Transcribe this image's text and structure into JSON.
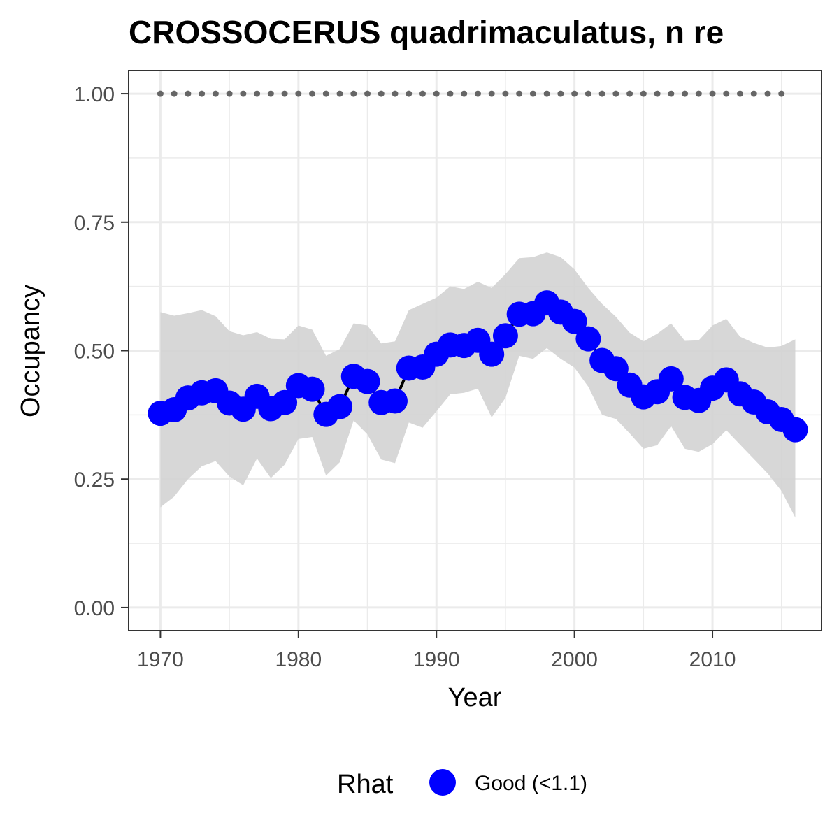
{
  "chart_data": {
    "type": "line",
    "title": "CROSSOCERUS quadrimaculatus, n re",
    "xlabel": "Year",
    "ylabel": "Occupancy",
    "xlim": [
      1967.7,
      2017.9
    ],
    "ylim": [
      -0.045,
      1.045
    ],
    "x_ticks": [
      1970,
      1980,
      1990,
      2000,
      2010
    ],
    "x_tick_labels": [
      "1970",
      "1980",
      "1990",
      "2000",
      "2010"
    ],
    "y_ticks": [
      0,
      0.25,
      0.5,
      0.75,
      1
    ],
    "y_tick_labels": [
      "0.00",
      "0.25",
      "0.50",
      "0.75",
      "1.00"
    ],
    "grid": true,
    "legend": {
      "title": "Rhat",
      "placement": "bottom",
      "entries": [
        {
          "label": "Good (<1.1)",
          "color": "#0000ff"
        }
      ]
    },
    "colors": {
      "points": "#0000ff",
      "line": "#000000",
      "ribbon": "#d3d3d3",
      "reference": "#666666"
    },
    "x": [
      1970,
      1971,
      1972,
      1973,
      1974,
      1975,
      1976,
      1977,
      1978,
      1979,
      1980,
      1981,
      1982,
      1983,
      1984,
      1985,
      1986,
      1987,
      1988,
      1989,
      1990,
      1991,
      1992,
      1993,
      1994,
      1995,
      1996,
      1997,
      1998,
      1999,
      2000,
      2001,
      2002,
      2003,
      2004,
      2005,
      2006,
      2007,
      2008,
      2009,
      2010,
      2011,
      2012,
      2013,
      2014,
      2015,
      2016
    ],
    "series": [
      {
        "values": [
          0.378,
          0.385,
          0.408,
          0.418,
          0.422,
          0.398,
          0.386,
          0.411,
          0.387,
          0.399,
          0.432,
          0.425,
          0.376,
          0.391,
          0.45,
          0.44,
          0.399,
          0.402,
          0.466,
          0.468,
          0.493,
          0.511,
          0.51,
          0.52,
          0.493,
          0.529,
          0.571,
          0.572,
          0.593,
          0.575,
          0.557,
          0.523,
          0.481,
          0.465,
          0.433,
          0.41,
          0.42,
          0.445,
          0.409,
          0.403,
          0.427,
          0.443,
          0.416,
          0.4,
          0.381,
          0.366,
          0.346
        ]
      }
    ],
    "ribbon_lower": [
      0.195,
      0.216,
      0.25,
      0.275,
      0.285,
      0.255,
      0.238,
      0.29,
      0.252,
      0.278,
      0.328,
      0.332,
      0.257,
      0.283,
      0.364,
      0.337,
      0.288,
      0.281,
      0.36,
      0.35,
      0.382,
      0.415,
      0.418,
      0.426,
      0.37,
      0.408,
      0.49,
      0.484,
      0.505,
      0.484,
      0.467,
      0.43,
      0.375,
      0.367,
      0.339,
      0.309,
      0.316,
      0.353,
      0.309,
      0.303,
      0.318,
      0.345,
      0.317,
      0.289,
      0.261,
      0.227,
      0.175
    ],
    "ribbon_upper": [
      0.575,
      0.568,
      0.573,
      0.579,
      0.567,
      0.538,
      0.53,
      0.536,
      0.523,
      0.522,
      0.549,
      0.541,
      0.49,
      0.503,
      0.553,
      0.549,
      0.514,
      0.518,
      0.579,
      0.591,
      0.603,
      0.625,
      0.62,
      0.634,
      0.622,
      0.649,
      0.68,
      0.682,
      0.691,
      0.682,
      0.658,
      0.622,
      0.591,
      0.566,
      0.535,
      0.518,
      0.533,
      0.553,
      0.519,
      0.52,
      0.549,
      0.562,
      0.527,
      0.515,
      0.506,
      0.509,
      0.522
    ],
    "reference": {
      "y": 1.0,
      "x_start": 1970,
      "x_end": 2015
    }
  }
}
